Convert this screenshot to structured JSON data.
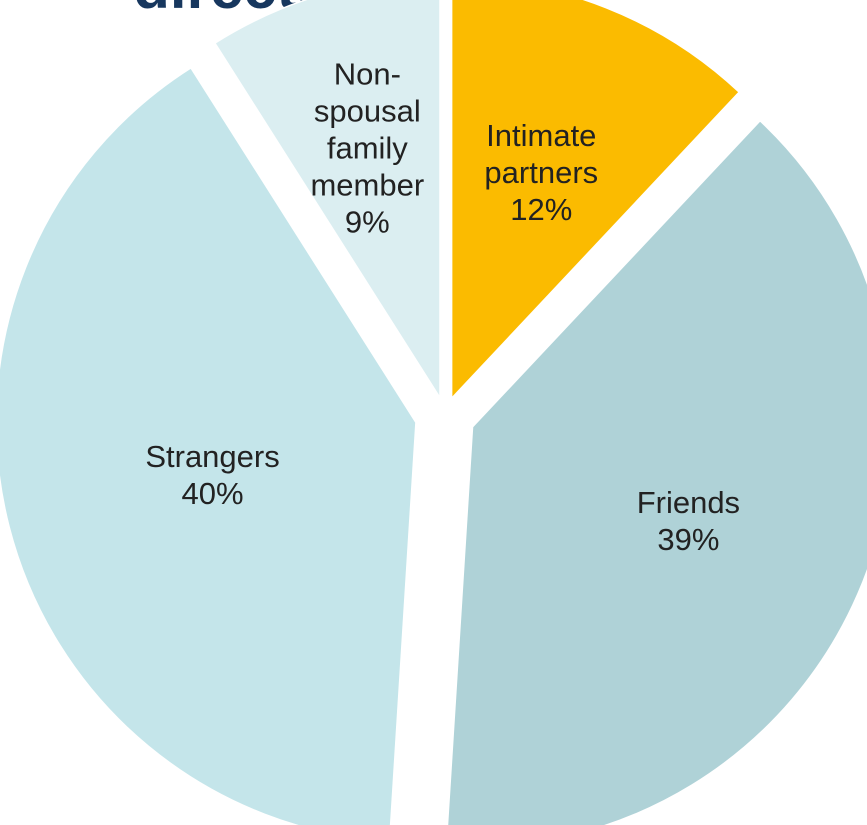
{
  "chart_data": {
    "type": "pie",
    "title": "directed at men",
    "slices": [
      {
        "label_lines": [
          "Intimate",
          "partners"
        ],
        "pct_label": "12%",
        "value": 12,
        "color": "#fbbb00"
      },
      {
        "label_lines": [
          "Friends"
        ],
        "pct_label": "39%",
        "value": 39,
        "color": "#afd2d7"
      },
      {
        "label_lines": [
          "Strangers"
        ],
        "pct_label": "40%",
        "value": 40,
        "color": "#c4e5ea"
      },
      {
        "label_lines": [
          "Non-",
          "spousal",
          "family",
          "member"
        ],
        "pct_label": "9%",
        "value": 9,
        "color": "#dbeef1"
      }
    ]
  }
}
